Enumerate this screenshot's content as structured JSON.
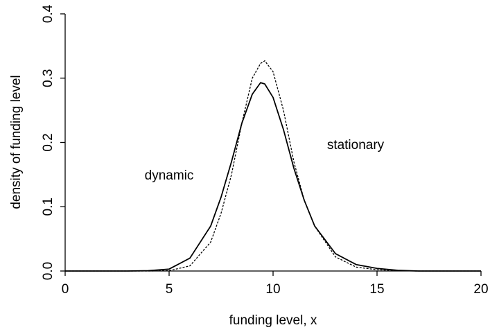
{
  "chart_data": {
    "type": "line",
    "x_label": "funding level, x",
    "y_label": "density of funding level",
    "x": [
      0,
      1,
      2,
      3,
      4,
      5,
      6,
      7,
      7.5,
      8,
      8.5,
      9,
      9.4,
      9.6,
      10,
      10.5,
      11,
      11.5,
      12,
      13,
      14,
      15,
      16,
      17,
      18,
      19,
      20
    ],
    "series": [
      {
        "name": "dynamic",
        "color": "#000000",
        "dashed": false,
        "values": [
          0,
          0,
          0,
          0,
          0.0005,
          0.003,
          0.02,
          0.07,
          0.115,
          0.17,
          0.23,
          0.275,
          0.293,
          0.291,
          0.27,
          0.22,
          0.16,
          0.11,
          0.07,
          0.027,
          0.01,
          0.004,
          0.001,
          0,
          0,
          0,
          0
        ]
      },
      {
        "name": "stationary",
        "color": "#000000",
        "dashed": true,
        "values": [
          0,
          0,
          0,
          0,
          0,
          0.0005,
          0.008,
          0.045,
          0.09,
          0.15,
          0.23,
          0.3,
          0.323,
          0.327,
          0.31,
          0.25,
          0.17,
          0.11,
          0.07,
          0.022,
          0.006,
          0.002,
          0.0005,
          0,
          0,
          0,
          0
        ]
      }
    ],
    "xlim": [
      0,
      20
    ],
    "xticks": [
      0,
      5,
      10,
      15,
      20
    ],
    "ylim": [
      0,
      0.4
    ],
    "yticks": [
      {
        "value": 0,
        "label": "0.0"
      },
      0.1,
      0.2,
      0.3,
      0.4
    ]
  }
}
